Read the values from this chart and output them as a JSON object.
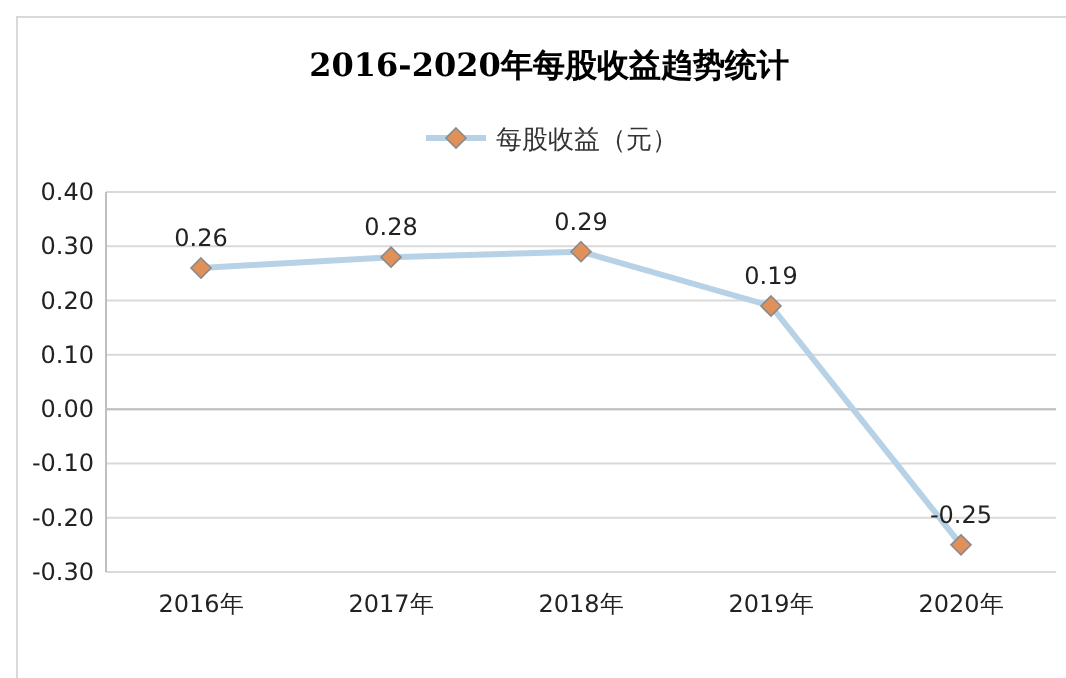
{
  "chart_data": {
    "type": "line",
    "title": "2016-2020年每股收益趋势统计",
    "categories": [
      "2016年",
      "2017年",
      "2018年",
      "2019年",
      "2020年"
    ],
    "series": [
      {
        "name": "每股收益（元）",
        "color": "#b7d2e6",
        "values": [
          0.26,
          0.28,
          0.29,
          0.19,
          -0.25
        ]
      }
    ],
    "ylim": [
      -0.3,
      0.4
    ],
    "yticks": [
      {
        "value": -0.3,
        "label": "-0.30"
      },
      {
        "value": -0.2,
        "label": "-0.20"
      },
      {
        "value": -0.1,
        "label": "-0.10"
      },
      {
        "value": 0,
        "label": "0.00"
      },
      {
        "value": 0.1,
        "label": "0.10"
      },
      {
        "value": 0.2,
        "label": "0.20"
      },
      {
        "value": 0.3,
        "label": "0.30"
      },
      {
        "value": 0.4,
        "label": "0.40"
      }
    ],
    "grid": "y",
    "legend": "top",
    "marker": "diamond",
    "line_style": "solid",
    "data_labels": true
  }
}
